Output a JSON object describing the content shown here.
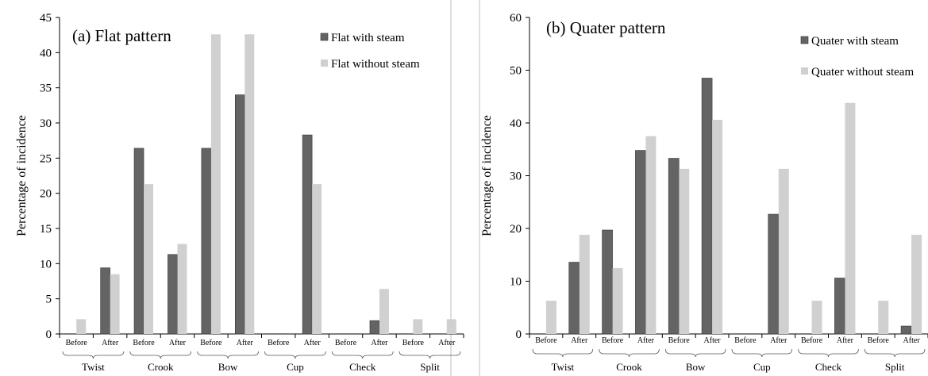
{
  "chart_data": [
    {
      "type": "bar",
      "title": "(a) Flat pattern",
      "ylabel": "Percentage of  incidence",
      "ylim": [
        0,
        45
      ],
      "yticks": [
        0,
        5,
        10,
        15,
        20,
        25,
        30,
        35,
        40,
        45
      ],
      "categories": [
        "Before",
        "After",
        "Before",
        "After",
        "Before",
        "After",
        "Before",
        "After",
        "Before",
        "After",
        "Before",
        "After"
      ],
      "groups": [
        "Twist",
        "Crook",
        "Bow",
        "Cup",
        "Check",
        "Split"
      ],
      "legend_position": "top-right",
      "series": [
        {
          "name": "Flat with steam",
          "color": "#646464",
          "values": [
            0,
            9.4,
            26.4,
            11.3,
            26.4,
            34.0,
            0,
            28.3,
            0,
            1.9,
            0,
            0
          ]
        },
        {
          "name": "Flat without steam",
          "color": "#d0d0d0",
          "values": [
            2.1,
            8.5,
            21.3,
            12.8,
            42.6,
            42.6,
            0,
            21.3,
            0,
            6.4,
            2.1,
            2.1
          ]
        }
      ]
    },
    {
      "type": "bar",
      "title": "(b) Quater pattern",
      "ylabel": "Percentage of  incidence",
      "ylim": [
        0,
        60
      ],
      "yticks": [
        0,
        10,
        20,
        30,
        40,
        50,
        60
      ],
      "categories": [
        "Before",
        "After",
        "Before",
        "After",
        "Before",
        "After",
        "Before",
        "After",
        "Before",
        "After",
        "Before",
        "After"
      ],
      "groups": [
        "Twist",
        "Crook",
        "Bow",
        "Cup",
        "Check",
        "Split"
      ],
      "legend_position": "top-right",
      "series": [
        {
          "name": "Quater with steam",
          "color": "#646464",
          "values": [
            0,
            13.6,
            19.7,
            34.8,
            33.3,
            48.5,
            0,
            22.7,
            0,
            10.6,
            0,
            1.5
          ]
        },
        {
          "name": "Quater without steam",
          "color": "#d0d0d0",
          "values": [
            6.3,
            18.8,
            12.5,
            37.5,
            31.3,
            40.6,
            0,
            31.3,
            6.3,
            43.8,
            6.3,
            18.8
          ]
        }
      ]
    }
  ]
}
